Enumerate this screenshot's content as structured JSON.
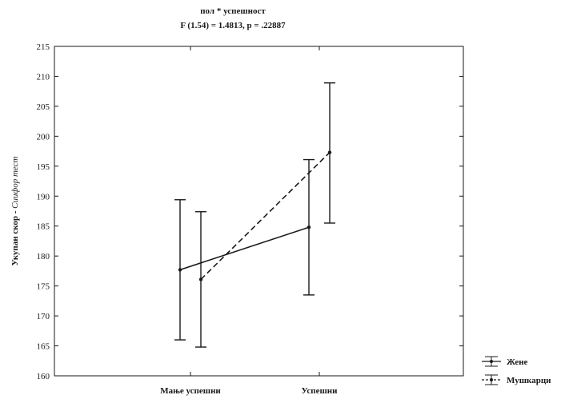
{
  "chart_data": {
    "type": "line",
    "title": "пол * успешност",
    "subtitle": "F (1.54) = 1.4813, p = .22887",
    "ylabel_main": "Укупан скор - ",
    "ylabel_italic": "Сиифор тест",
    "xlabel": "",
    "categories": [
      "Мање успешни",
      "Успешни"
    ],
    "ylim": [
      160,
      215
    ],
    "yticks": [
      160,
      165,
      170,
      175,
      180,
      185,
      190,
      195,
      200,
      205,
      210,
      215
    ],
    "ytick_labels": [
      "160",
      "165",
      "170",
      "175",
      "180",
      "185",
      "190",
      "195",
      "200",
      "205",
      "210",
      "215"
    ],
    "grid": false,
    "legend_position": "bottom-right",
    "series": [
      {
        "name": "Жене",
        "line_style": "solid",
        "means": [
          177.7,
          184.8
        ],
        "lower": [
          166.0,
          173.5
        ],
        "upper": [
          189.4,
          196.1
        ]
      },
      {
        "name": "Мушкарци",
        "line_style": "dashed",
        "means": [
          176.1,
          197.3
        ],
        "lower": [
          164.8,
          185.5
        ],
        "upper": [
          187.4,
          208.9
        ]
      }
    ]
  }
}
